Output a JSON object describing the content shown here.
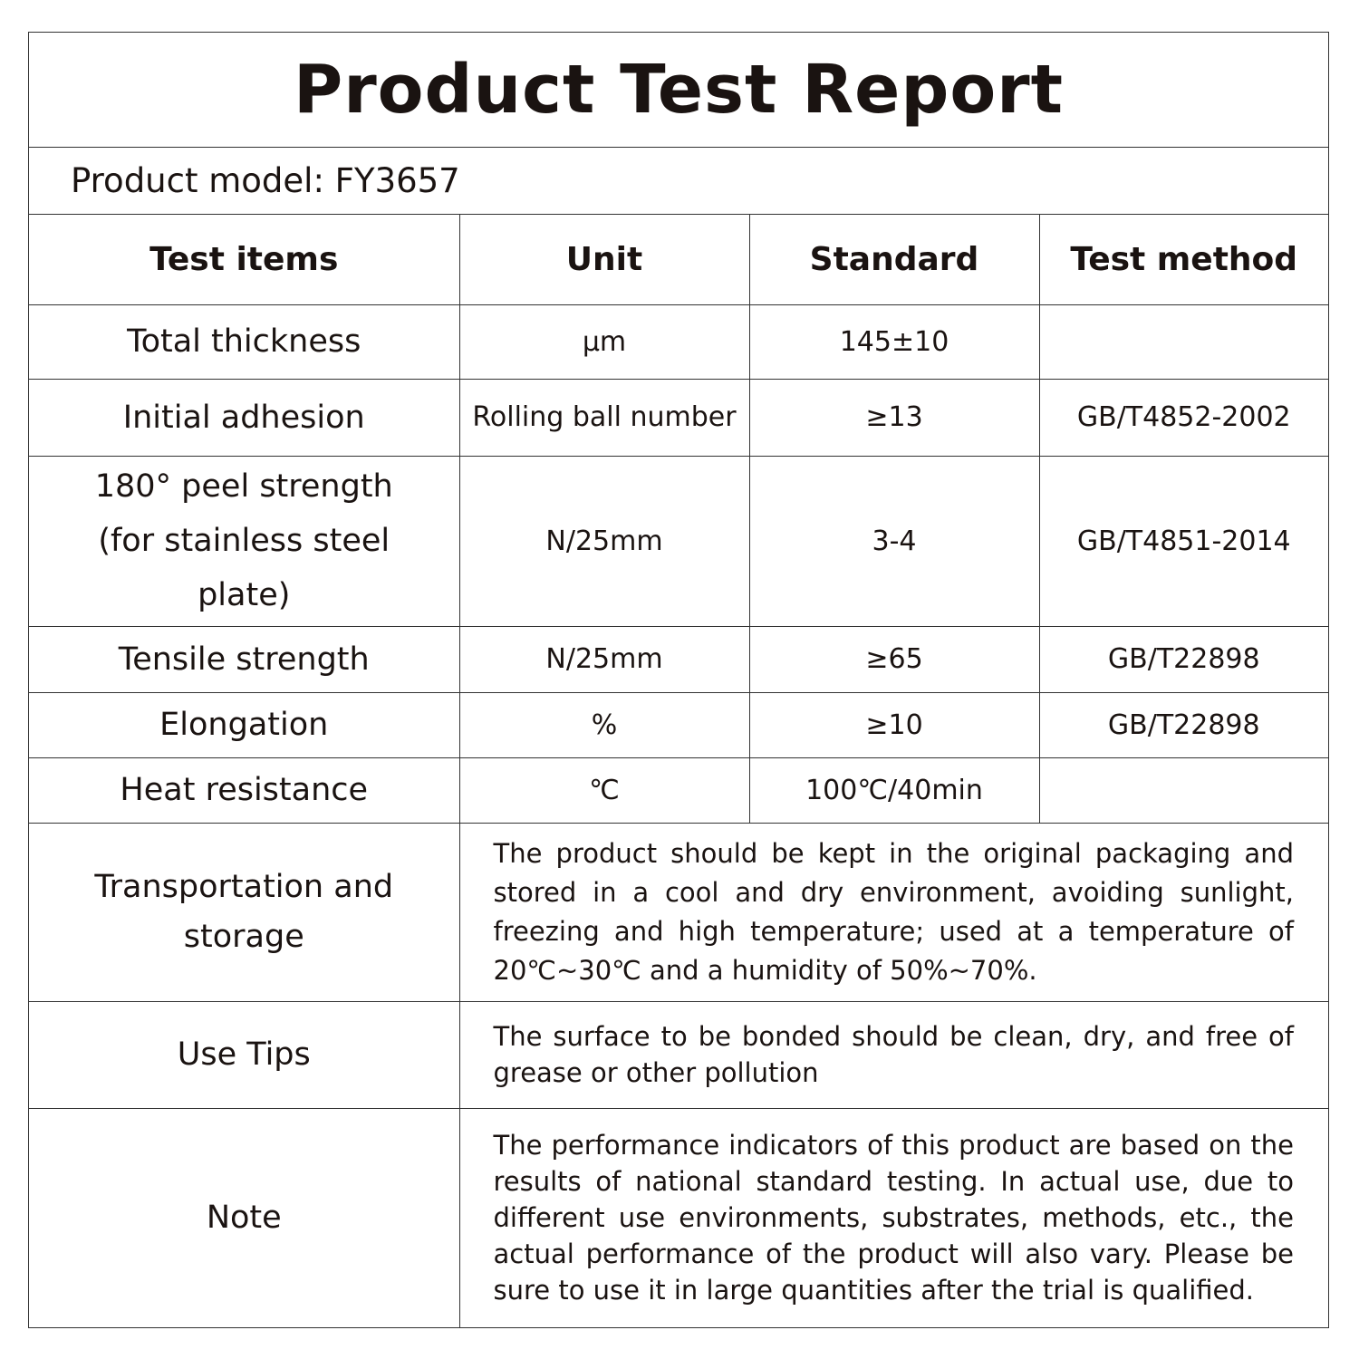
{
  "title": "Product Test Report",
  "product_model": "Product model: FY3657",
  "headers": [
    "Test items",
    "Unit",
    "Standard",
    "Test method"
  ],
  "rows": [
    {
      "item": "Total thickness",
      "unit": "μm",
      "standard": "145±10",
      "method": ""
    },
    {
      "item": "Initial adhesion",
      "unit": "Rolling ball number",
      "standard": "≥13",
      "method": "GB/T4852-2002"
    },
    {
      "item": "180° peel strength (for stainless steel plate)",
      "unit": "N/25mm",
      "standard": "3-4",
      "method": "GB/T4851-2014"
    },
    {
      "item": "Tensile strength",
      "unit": "N/25mm",
      "standard": "≥65",
      "method": "GB/T22898"
    },
    {
      "item": "Elongation",
      "unit": "%",
      "standard": "≥10",
      "method": "GB/T22898"
    },
    {
      "item": "Heat resistance",
      "unit": "℃",
      "standard": "100℃/40min",
      "method": ""
    }
  ],
  "notes": [
    {
      "label": "Transportation and storage",
      "text": "The product should be kept in the original packaging and stored in a cool and dry environment, avoiding sunlight, freezing and high temperature; used at a temperature of 20℃~30℃ and a humidity of 50%~70%."
    },
    {
      "label": "Use Tips",
      "text": "The surface to be bonded should be clean, dry, and free of grease or other pollution"
    },
    {
      "label": "Note",
      "text": "The performance indicators of this product are based on the results of national standard testing. In actual use, due to different use environments, substrates, methods, etc., the actual performance of the product will also vary. Please be sure to use it in large quantities after the trial is qualified."
    }
  ]
}
